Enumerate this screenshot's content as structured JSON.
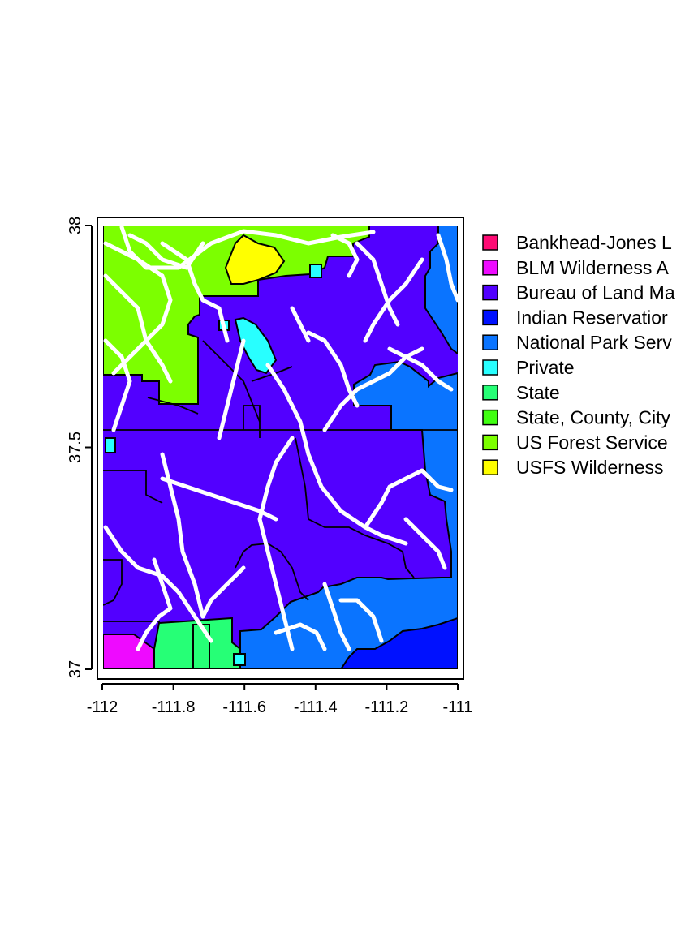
{
  "map": {
    "x_axis": {
      "ticks": [
        "-112",
        "-111.8",
        "-111.6",
        "-111.4",
        "-111.2",
        "-111"
      ],
      "values": [
        -112,
        -111.8,
        -111.6,
        -111.4,
        -111.2,
        -111
      ]
    },
    "y_axis": {
      "ticks": [
        "37",
        "37.5",
        "38"
      ],
      "values": [
        37,
        37.5,
        38
      ]
    },
    "colors": {
      "bankhead": "#ff0a74",
      "blm_wilderness": "#ee0aff",
      "blm": "#5200ff",
      "indian_reservation": "#0011ff",
      "nps": "#0a74ff",
      "private": "#28ffff",
      "state": "#26ff76",
      "state_county_city": "#40ff11",
      "usfs": "#7cff00",
      "usfs_wilderness": "#ffff00",
      "roads": "#ffffff"
    }
  },
  "legend": {
    "items": [
      {
        "label": "Bankhead-Jones L",
        "color": "#ff0a74"
      },
      {
        "label": "BLM Wilderness A",
        "color": "#ee0aff"
      },
      {
        "label": "Bureau of Land Ma",
        "color": "#5200ff"
      },
      {
        "label": "Indian Reservatior",
        "color": "#0011ff"
      },
      {
        "label": "National Park Serv",
        "color": "#0a74ff"
      },
      {
        "label": "Private",
        "color": "#28ffff"
      },
      {
        "label": "State",
        "color": "#26ff76"
      },
      {
        "label": "State, County, City",
        "color": "#40ff11"
      },
      {
        "label": "US Forest Service",
        "color": "#7cff00"
      },
      {
        "label": "USFS Wilderness",
        "color": "#ffff00"
      }
    ]
  }
}
